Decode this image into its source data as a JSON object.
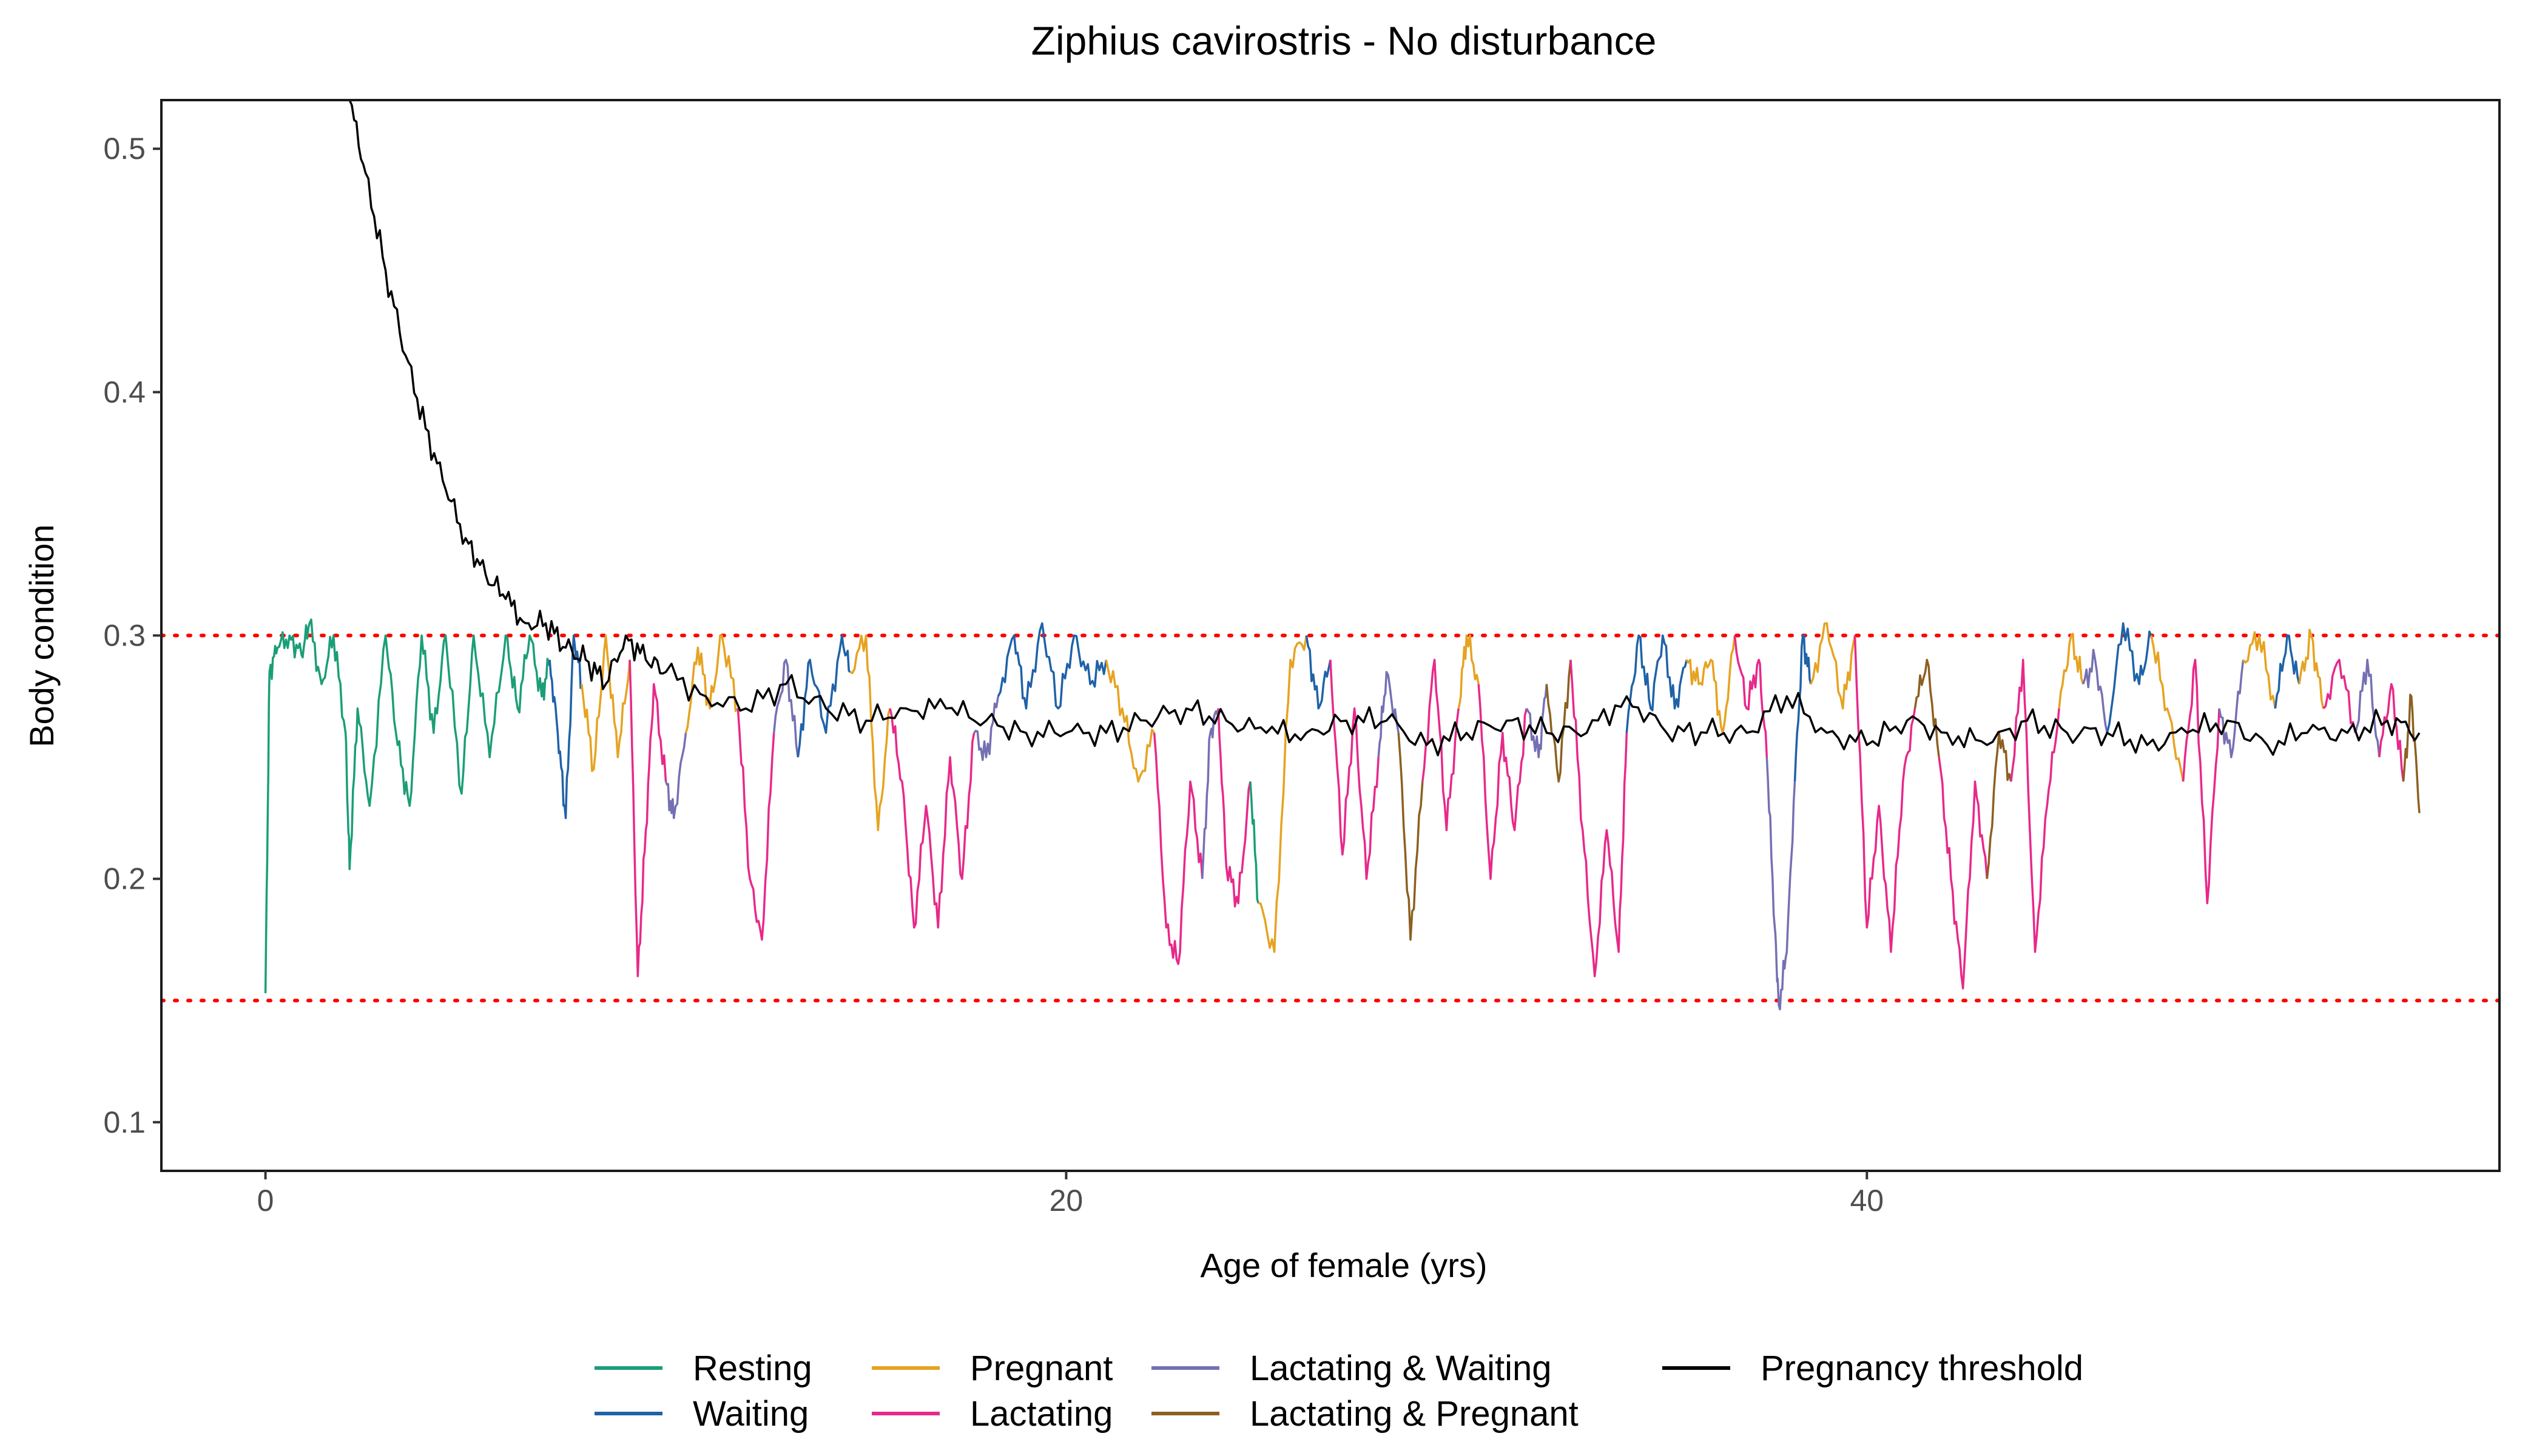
{
  "chart_data": {
    "type": "line",
    "title": "Ziphius cavirostris - No disturbance",
    "xlabel": "Age of female (yrs)",
    "ylabel": "Body condition",
    "xlim": [
      -2.6,
      55.8
    ],
    "ylim": [
      0.08,
      0.52
    ],
    "xticks": [
      0,
      20,
      40
    ],
    "yticks": [
      0.1,
      0.2,
      0.3,
      0.4,
      0.5
    ],
    "xtick_labels": [
      "0",
      "20",
      "40"
    ],
    "ytick_labels": [
      "0.1",
      "0.2",
      "0.3",
      "0.4",
      "0.5"
    ],
    "grid": false,
    "legend_position": "bottom",
    "reference_lines": [
      {
        "y": 0.3,
        "color": "#ff0000",
        "style": "dotted"
      },
      {
        "y": 0.15,
        "color": "#ff0000",
        "style": "dotted"
      }
    ],
    "legend": [
      {
        "name": "Resting",
        "color": "#1b9e77"
      },
      {
        "name": "Waiting",
        "color": "#1f62a8"
      },
      {
        "name": "Pregnant",
        "color": "#e6a321"
      },
      {
        "name": "Lactating",
        "color": "#e7298a"
      },
      {
        "name": "Lactating & Waiting",
        "color": "#7570b3"
      },
      {
        "name": "Lactating & Pregnant",
        "color": "#8c6020"
      },
      {
        "name": "Pregnancy threshold",
        "color": "#000000"
      }
    ],
    "state_segments": [
      {
        "state": "Resting",
        "x": [
          0.0,
          0.1,
          0.3,
          0.6,
          0.9,
          1.1,
          1.4,
          1.7,
          2.0,
          2.1,
          2.3,
          2.6,
          3.0,
          3.3,
          3.6,
          3.9,
          4.2,
          4.5,
          4.9,
          5.2,
          5.6,
          6.0,
          6.3,
          6.6,
          6.9,
          7.1
        ],
        "y": [
          0.153,
          0.285,
          0.295,
          0.3,
          0.292,
          0.305,
          0.28,
          0.3,
          0.26,
          0.204,
          0.27,
          0.23,
          0.3,
          0.255,
          0.23,
          0.3,
          0.26,
          0.3,
          0.235,
          0.3,
          0.25,
          0.3,
          0.27,
          0.3,
          0.275,
          0.29
        ]
      },
      {
        "state": "Waiting",
        "x": [
          7.1,
          7.3,
          7.5,
          7.7,
          7.9
        ],
        "y": [
          0.29,
          0.26,
          0.225,
          0.3,
          0.28
        ]
      },
      {
        "state": "Pregnant",
        "x": [
          7.9,
          8.2,
          8.5,
          8.8,
          9.1
        ],
        "y": [
          0.28,
          0.245,
          0.3,
          0.25,
          0.29
        ]
      },
      {
        "state": "Lactating",
        "x": [
          9.1,
          9.3,
          9.5,
          9.7,
          10.0
        ],
        "y": [
          0.29,
          0.16,
          0.22,
          0.28,
          0.24
        ]
      },
      {
        "state": "Lactating & Waiting",
        "x": [
          10.0,
          10.2,
          10.5
        ],
        "y": [
          0.24,
          0.225,
          0.26
        ]
      },
      {
        "state": "Pregnant",
        "x": [
          10.5,
          10.8,
          11.1,
          11.4,
          11.8
        ],
        "y": [
          0.26,
          0.295,
          0.27,
          0.3,
          0.27
        ]
      },
      {
        "state": "Lactating",
        "x": [
          11.8,
          12.1,
          12.4,
          12.7
        ],
        "y": [
          0.27,
          0.2,
          0.175,
          0.26
        ]
      },
      {
        "state": "Lactating & Waiting",
        "x": [
          12.7,
          13.0,
          13.3
        ],
        "y": [
          0.26,
          0.29,
          0.25
        ]
      },
      {
        "state": "Waiting",
        "x": [
          13.3,
          13.6,
          14.0,
          14.4,
          14.6
        ],
        "y": [
          0.25,
          0.29,
          0.26,
          0.3,
          0.285
        ]
      },
      {
        "state": "Pregnant",
        "x": [
          14.6,
          15.0,
          15.3,
          15.6
        ],
        "y": [
          0.285,
          0.3,
          0.22,
          0.27
        ]
      },
      {
        "state": "Lactating",
        "x": [
          15.6,
          15.9,
          16.2,
          16.5,
          16.8,
          17.1,
          17.4,
          17.7
        ],
        "y": [
          0.27,
          0.24,
          0.18,
          0.23,
          0.18,
          0.25,
          0.2,
          0.26
        ]
      },
      {
        "state": "Lactating & Waiting",
        "x": [
          17.7,
          18.0,
          18.3
        ],
        "y": [
          0.26,
          0.25,
          0.275
        ]
      },
      {
        "state": "Waiting",
        "x": [
          18.3,
          18.7,
          19.0,
          19.4,
          19.8,
          20.2,
          20.6,
          21.0
        ],
        "y": [
          0.275,
          0.3,
          0.27,
          0.305,
          0.27,
          0.3,
          0.28,
          0.29
        ]
      },
      {
        "state": "Pregnant",
        "x": [
          21.0,
          21.4,
          21.8,
          22.2
        ],
        "y": [
          0.29,
          0.27,
          0.24,
          0.26
        ]
      },
      {
        "state": "Lactating",
        "x": [
          22.2,
          22.5,
          22.8,
          23.1,
          23.4
        ],
        "y": [
          0.26,
          0.18,
          0.165,
          0.24,
          0.2
        ]
      },
      {
        "state": "Lactating & Waiting",
        "x": [
          23.4,
          23.6,
          23.8
        ],
        "y": [
          0.2,
          0.26,
          0.27
        ]
      },
      {
        "state": "Lactating",
        "x": [
          23.8,
          24.0,
          24.3,
          24.6
        ],
        "y": [
          0.27,
          0.205,
          0.19,
          0.24
        ]
      },
      {
        "state": "Resting",
        "x": [
          24.6,
          24.8
        ],
        "y": [
          0.24,
          0.19
        ]
      },
      {
        "state": "Pregnant",
        "x": [
          24.8,
          25.2,
          25.6,
          26.0
        ],
        "y": [
          0.19,
          0.17,
          0.29,
          0.3
        ]
      },
      {
        "state": "Waiting",
        "x": [
          26.0,
          26.3,
          26.6
        ],
        "y": [
          0.3,
          0.27,
          0.29
        ]
      },
      {
        "state": "Lactating",
        "x": [
          26.6,
          26.9,
          27.2,
          27.5,
          27.8
        ],
        "y": [
          0.29,
          0.21,
          0.27,
          0.2,
          0.25
        ]
      },
      {
        "state": "Lactating & Waiting",
        "x": [
          27.8,
          28.0,
          28.3
        ],
        "y": [
          0.25,
          0.285,
          0.26
        ]
      },
      {
        "state": "Lactating & Pregnant",
        "x": [
          28.3,
          28.6,
          28.9
        ],
        "y": [
          0.26,
          0.175,
          0.24
        ]
      },
      {
        "state": "Lactating",
        "x": [
          28.9,
          29.2,
          29.5,
          29.8
        ],
        "y": [
          0.24,
          0.29,
          0.22,
          0.27
        ]
      },
      {
        "state": "Pregnant",
        "x": [
          29.8,
          30.0,
          30.3
        ],
        "y": [
          0.27,
          0.3,
          0.28
        ]
      },
      {
        "state": "Lactating",
        "x": [
          30.3,
          30.6,
          30.9,
          31.2,
          31.5
        ],
        "y": [
          0.28,
          0.2,
          0.26,
          0.22,
          0.27
        ]
      },
      {
        "state": "Lactating & Waiting",
        "x": [
          31.5,
          31.8,
          32.0
        ],
        "y": [
          0.27,
          0.25,
          0.28
        ]
      },
      {
        "state": "Lactating & Pregnant",
        "x": [
          32.0,
          32.3,
          32.6
        ],
        "y": [
          0.28,
          0.24,
          0.29
        ]
      },
      {
        "state": "Lactating",
        "x": [
          32.6,
          32.9,
          33.2,
          33.5,
          33.8,
          34.0
        ],
        "y": [
          0.29,
          0.22,
          0.16,
          0.22,
          0.17,
          0.26
        ]
      },
      {
        "state": "Waiting",
        "x": [
          34.0,
          34.3,
          34.6,
          34.9,
          35.2,
          35.5
        ],
        "y": [
          0.26,
          0.3,
          0.27,
          0.3,
          0.27,
          0.29
        ]
      },
      {
        "state": "Pregnant",
        "x": [
          35.5,
          35.8,
          36.1,
          36.4,
          36.7
        ],
        "y": [
          0.29,
          0.28,
          0.29,
          0.26,
          0.3
        ]
      },
      {
        "state": "Lactating",
        "x": [
          36.7,
          37.0,
          37.3,
          37.5
        ],
        "y": [
          0.3,
          0.27,
          0.29,
          0.25
        ]
      },
      {
        "state": "Lactating & Waiting",
        "x": [
          37.5,
          37.7,
          37.8,
          38.0,
          38.2
        ],
        "y": [
          0.25,
          0.18,
          0.148,
          0.17,
          0.24
        ]
      },
      {
        "state": "Waiting",
        "x": [
          38.2,
          38.4,
          38.6
        ],
        "y": [
          0.24,
          0.3,
          0.28
        ]
      },
      {
        "state": "Pregnant",
        "x": [
          38.6,
          39.0,
          39.4,
          39.7
        ],
        "y": [
          0.28,
          0.305,
          0.27,
          0.3
        ]
      },
      {
        "state": "Lactating",
        "x": [
          39.7,
          40.0,
          40.3,
          40.6,
          40.9,
          41.2
        ],
        "y": [
          0.3,
          0.18,
          0.23,
          0.17,
          0.24,
          0.27
        ]
      },
      {
        "state": "Lactating & Pregnant",
        "x": [
          41.2,
          41.5,
          41.8
        ],
        "y": [
          0.27,
          0.29,
          0.25
        ]
      },
      {
        "state": "Lactating",
        "x": [
          41.8,
          42.1,
          42.4,
          42.7,
          43.0
        ],
        "y": [
          0.25,
          0.2,
          0.155,
          0.24,
          0.2
        ]
      },
      {
        "state": "Lactating & Pregnant",
        "x": [
          43.0,
          43.3,
          43.6
        ],
        "y": [
          0.2,
          0.26,
          0.24
        ]
      },
      {
        "state": "Lactating",
        "x": [
          43.6,
          43.9,
          44.2,
          44.5,
          44.8
        ],
        "y": [
          0.24,
          0.29,
          0.17,
          0.23,
          0.27
        ]
      },
      {
        "state": "Pregnant",
        "x": [
          44.8,
          45.1,
          45.4
        ],
        "y": [
          0.27,
          0.3,
          0.28
        ]
      },
      {
        "state": "Lactating & Waiting",
        "x": [
          45.4,
          45.7,
          46.0
        ],
        "y": [
          0.28,
          0.29,
          0.26
        ]
      },
      {
        "state": "Waiting",
        "x": [
          46.0,
          46.4,
          46.8,
          47.1
        ],
        "y": [
          0.26,
          0.305,
          0.28,
          0.3
        ]
      },
      {
        "state": "Pregnant",
        "x": [
          47.1,
          47.5,
          47.9
        ],
        "y": [
          0.3,
          0.27,
          0.24
        ]
      },
      {
        "state": "Lactating",
        "x": [
          47.9,
          48.2,
          48.5,
          48.8
        ],
        "y": [
          0.24,
          0.29,
          0.19,
          0.27
        ]
      },
      {
        "state": "Lactating & Waiting",
        "x": [
          48.8,
          49.1,
          49.4
        ],
        "y": [
          0.27,
          0.25,
          0.29
        ]
      },
      {
        "state": "Pregnant",
        "x": [
          49.4,
          49.8,
          50.2
        ],
        "y": [
          0.29,
          0.3,
          0.27
        ]
      },
      {
        "state": "Waiting",
        "x": [
          50.2,
          50.5,
          50.8
        ],
        "y": [
          0.27,
          0.3,
          0.28
        ]
      },
      {
        "state": "Pregnant",
        "x": [
          50.8,
          51.1,
          51.4
        ],
        "y": [
          0.28,
          0.3,
          0.27
        ]
      },
      {
        "state": "Lactating",
        "x": [
          51.4,
          51.8,
          52.2
        ],
        "y": [
          0.27,
          0.29,
          0.26
        ]
      },
      {
        "state": "Lactating & Waiting",
        "x": [
          52.2,
          52.5,
          52.8
        ],
        "y": [
          0.26,
          0.29,
          0.25
        ]
      },
      {
        "state": "Lactating",
        "x": [
          52.8,
          53.1,
          53.4
        ],
        "y": [
          0.25,
          0.28,
          0.24
        ]
      },
      {
        "state": "Lactating & Pregnant",
        "x": [
          53.4,
          53.6,
          53.8
        ],
        "y": [
          0.24,
          0.275,
          0.227
        ]
      }
    ],
    "threshold_series": {
      "name": "Pregnancy threshold",
      "x": [
        2.1,
        2.5,
        3.0,
        3.5,
        4.0,
        4.5,
        5.0,
        5.5,
        6.0,
        6.5,
        7.0,
        7.5,
        8.0,
        8.5,
        9.0,
        9.5,
        10.0,
        11.0,
        12.0,
        13.0,
        14.0,
        15.0,
        16.0,
        17.0,
        18.0,
        19.0,
        20.0,
        21.0,
        22.0,
        23.0,
        24.0,
        25.0,
        26.0,
        27.0,
        28.0,
        29.0,
        30.0,
        31.0,
        32.0,
        33.0,
        34.0,
        35.0,
        36.0,
        37.0,
        38.0,
        39.0,
        40.0,
        41.0,
        42.0,
        43.0,
        44.0,
        45.0,
        46.0,
        47.0,
        48.0,
        49.0,
        50.0,
        51.0,
        52.0,
        53.0,
        53.8
      ],
      "y": [
        0.52,
        0.49,
        0.45,
        0.415,
        0.385,
        0.36,
        0.34,
        0.325,
        0.315,
        0.305,
        0.305,
        0.295,
        0.29,
        0.28,
        0.3,
        0.29,
        0.285,
        0.275,
        0.27,
        0.28,
        0.27,
        0.265,
        0.27,
        0.27,
        0.265,
        0.26,
        0.26,
        0.26,
        0.265,
        0.27,
        0.265,
        0.26,
        0.26,
        0.265,
        0.265,
        0.255,
        0.26,
        0.265,
        0.26,
        0.26,
        0.275,
        0.26,
        0.26,
        0.26,
        0.275,
        0.26,
        0.255,
        0.265,
        0.26,
        0.255,
        0.265,
        0.26,
        0.26,
        0.255,
        0.26,
        0.265,
        0.255,
        0.26,
        0.26,
        0.265,
        0.26
      ]
    }
  }
}
